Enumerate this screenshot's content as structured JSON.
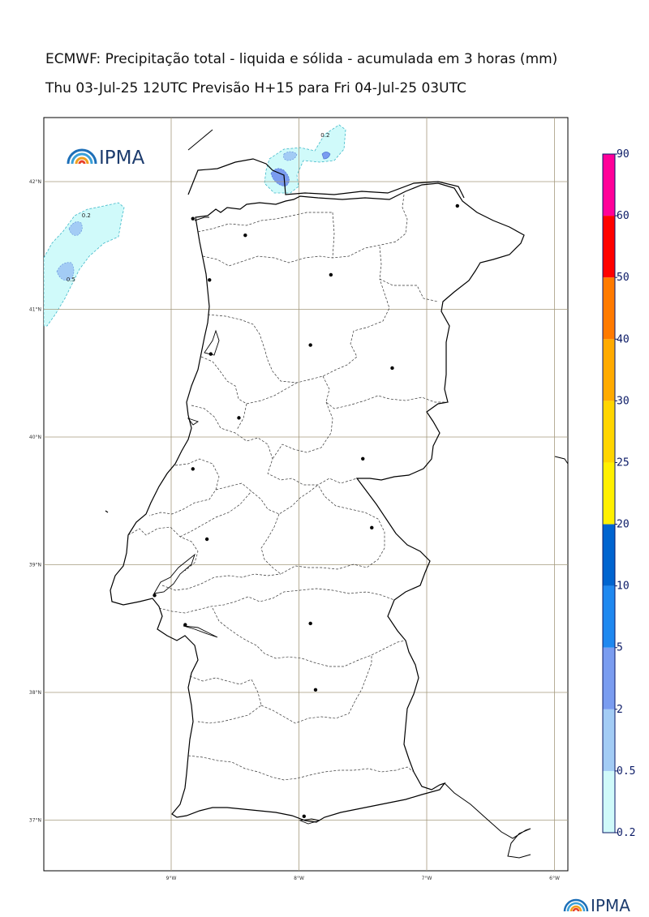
{
  "title": "ECMWF: Precipitação total - liquida e sólida - acumulada em 3 horas (mm)",
  "subtitle": "Thu 03-Jul-25 12UTC Previsão H+15 para Fri 04-Jul-25 03UTC",
  "logo_text": "IPMA",
  "footer_logo_text": "IPMA",
  "map": {
    "lon_ticks": [
      {
        "value": -9,
        "label": "9°W"
      },
      {
        "value": -8,
        "label": "8°W"
      },
      {
        "value": -7,
        "label": "7°W"
      },
      {
        "value": -6,
        "label": "6°W"
      }
    ],
    "lat_ticks": [
      {
        "value": 42,
        "label": "42°N"
      },
      {
        "value": 41,
        "label": "41°N"
      },
      {
        "value": 40,
        "label": "40°N"
      },
      {
        "value": 39,
        "label": "39°N"
      },
      {
        "value": 38,
        "label": "38°N"
      },
      {
        "value": 37,
        "label": "37°N"
      }
    ],
    "contour_labels": [
      {
        "text": "0.2",
        "lon": -9.7,
        "lat": 41.72
      },
      {
        "text": "0.5",
        "lon": -9.82,
        "lat": 41.22
      },
      {
        "text": "0.2",
        "lon": -7.83,
        "lat": 42.35
      }
    ],
    "cities": [
      {
        "lon": -6.76,
        "lat": 41.81
      },
      {
        "lon": -8.42,
        "lat": 41.58
      },
      {
        "lon": -8.83,
        "lat": 41.71
      },
      {
        "lon": -8.7,
        "lat": 41.23
      },
      {
        "lon": -7.75,
        "lat": 41.27
      },
      {
        "lon": -8.69,
        "lat": 40.65
      },
      {
        "lon": -7.91,
        "lat": 40.72
      },
      {
        "lon": -7.27,
        "lat": 40.54
      },
      {
        "lon": -8.47,
        "lat": 40.15
      },
      {
        "lon": -8.83,
        "lat": 39.75
      },
      {
        "lon": -7.5,
        "lat": 39.83
      },
      {
        "lon": -8.72,
        "lat": 39.2
      },
      {
        "lon": -7.43,
        "lat": 39.29
      },
      {
        "lon": -9.13,
        "lat": 38.76
      },
      {
        "lon": -8.89,
        "lat": 38.53
      },
      {
        "lon": -7.91,
        "lat": 38.54
      },
      {
        "lon": -7.87,
        "lat": 38.02
      },
      {
        "lon": -7.96,
        "lat": 37.03
      }
    ]
  },
  "colorbar": {
    "levels": [
      "0.2",
      "0.5",
      "2",
      "5",
      "10",
      "20",
      "25",
      "30",
      "40",
      "50",
      "60",
      "90"
    ],
    "colors": [
      "#d0fafa",
      "#a3ccf5",
      "#7a9cf0",
      "#1f88f0",
      "#0064d0",
      "#fff000",
      "#ffd500",
      "#ffaa00",
      "#ff7a00",
      "#ff0000",
      "#ff0099"
    ]
  }
}
